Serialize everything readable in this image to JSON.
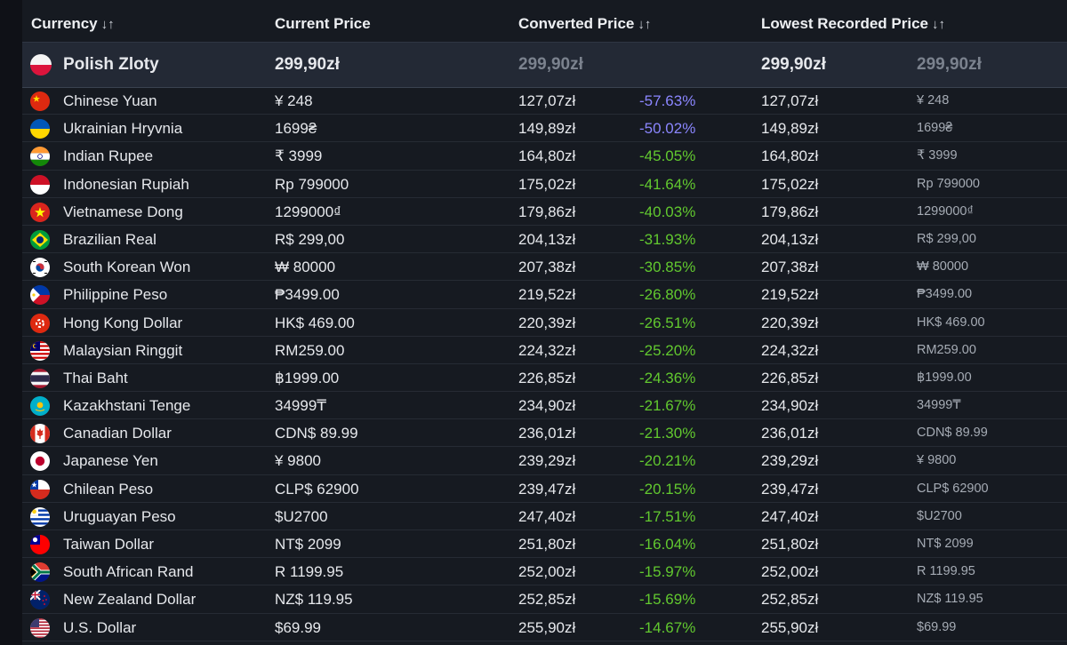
{
  "header": {
    "currency": "Currency",
    "current": "Current Price",
    "converted": "Converted Price",
    "lowest": "Lowest Recorded Price",
    "sort_glyph": "↓↑"
  },
  "base": {
    "name": "Polish Zloty",
    "price": "299,90zł",
    "converted": "299,90zł",
    "lowest": "299,90zł",
    "lowest_local": "299,90zł"
  },
  "rows": [
    {
      "name": "Chinese Yuan",
      "price": "¥ 248",
      "conv": "127,07zł",
      "pct": "-57.63%",
      "low": "127,07zł",
      "lowl": "¥ 248",
      "flag": "cn"
    },
    {
      "name": "Ukrainian Hryvnia",
      "price": "1699₴",
      "conv": "149,89zł",
      "pct": "-50.02%",
      "low": "149,89zł",
      "lowl": "1699₴",
      "flag": "ua"
    },
    {
      "name": "Indian Rupee",
      "price": "₹ 3999",
      "conv": "164,80zł",
      "pct": "-45.05%",
      "low": "164,80zł",
      "lowl": "₹ 3999",
      "flag": "in"
    },
    {
      "name": "Indonesian Rupiah",
      "price": "Rp 799000",
      "conv": "175,02zł",
      "pct": "-41.64%",
      "low": "175,02zł",
      "lowl": "Rp 799000",
      "flag": "id"
    },
    {
      "name": "Vietnamese Dong",
      "price": "1299000₫",
      "conv": "179,86zł",
      "pct": "-40.03%",
      "low": "179,86zł",
      "lowl": "1299000₫",
      "flag": "vn"
    },
    {
      "name": "Brazilian Real",
      "price": "R$ 299,00",
      "conv": "204,13zł",
      "pct": "-31.93%",
      "low": "204,13zł",
      "lowl": "R$ 299,00",
      "flag": "br"
    },
    {
      "name": "South Korean Won",
      "price": "₩ 80000",
      "conv": "207,38zł",
      "pct": "-30.85%",
      "low": "207,38zł",
      "lowl": "₩ 80000",
      "flag": "kr"
    },
    {
      "name": "Philippine Peso",
      "price": "₱3499.00",
      "conv": "219,52zł",
      "pct": "-26.80%",
      "low": "219,52zł",
      "lowl": "₱3499.00",
      "flag": "ph"
    },
    {
      "name": "Hong Kong Dollar",
      "price": "HK$ 469.00",
      "conv": "220,39zł",
      "pct": "-26.51%",
      "low": "220,39zł",
      "lowl": "HK$ 469.00",
      "flag": "hk"
    },
    {
      "name": "Malaysian Ringgit",
      "price": "RM259.00",
      "conv": "224,32zł",
      "pct": "-25.20%",
      "low": "224,32zł",
      "lowl": "RM259.00",
      "flag": "my"
    },
    {
      "name": "Thai Baht",
      "price": "฿1999.00",
      "conv": "226,85zł",
      "pct": "-24.36%",
      "low": "226,85zł",
      "lowl": "฿1999.00",
      "flag": "th"
    },
    {
      "name": "Kazakhstani Tenge",
      "price": "34999₸",
      "conv": "234,90zł",
      "pct": "-21.67%",
      "low": "234,90zł",
      "lowl": "34999₸",
      "flag": "kz"
    },
    {
      "name": "Canadian Dollar",
      "price": "CDN$ 89.99",
      "conv": "236,01zł",
      "pct": "-21.30%",
      "low": "236,01zł",
      "lowl": "CDN$ 89.99",
      "flag": "ca"
    },
    {
      "name": "Japanese Yen",
      "price": "¥ 9800",
      "conv": "239,29zł",
      "pct": "-20.21%",
      "low": "239,29zł",
      "lowl": "¥ 9800",
      "flag": "jp"
    },
    {
      "name": "Chilean Peso",
      "price": "CLP$ 62900",
      "conv": "239,47zł",
      "pct": "-20.15%",
      "low": "239,47zł",
      "lowl": "CLP$ 62900",
      "flag": "cl"
    },
    {
      "name": "Uruguayan Peso",
      "price": "$U2700",
      "conv": "247,40zł",
      "pct": "-17.51%",
      "low": "247,40zł",
      "lowl": "$U2700",
      "flag": "uy"
    },
    {
      "name": "Taiwan Dollar",
      "price": "NT$ 2099",
      "conv": "251,80zł",
      "pct": "-16.04%",
      "low": "251,80zł",
      "lowl": "NT$ 2099",
      "flag": "tw"
    },
    {
      "name": "South African Rand",
      "price": "R 1199.95",
      "conv": "252,00zł",
      "pct": "-15.97%",
      "low": "252,00zł",
      "lowl": "R 1199.95",
      "flag": "za"
    },
    {
      "name": "New Zealand Dollar",
      "price": "NZ$ 119.95",
      "conv": "252,85zł",
      "pct": "-15.69%",
      "low": "252,85zł",
      "lowl": "NZ$ 119.95",
      "flag": "nz"
    },
    {
      "name": "U.S. Dollar",
      "price": "$69.99",
      "conv": "255,90zł",
      "pct": "-14.67%",
      "low": "255,90zł",
      "lowl": "$69.99",
      "flag": "us"
    }
  ],
  "colors": {
    "pct_strong": "#8b86ff",
    "pct_normal": "#62c92f",
    "muted": "#7b828e"
  }
}
